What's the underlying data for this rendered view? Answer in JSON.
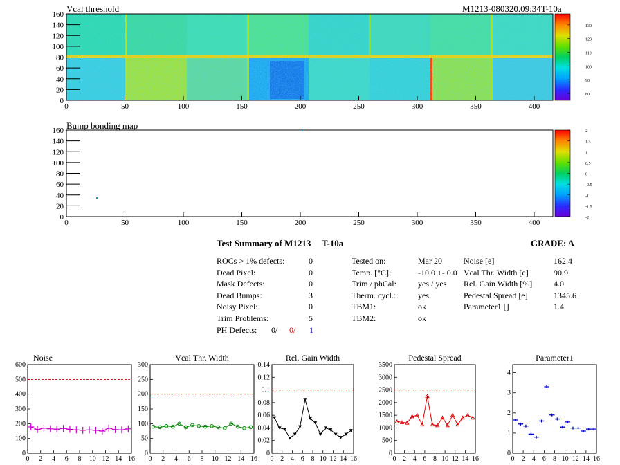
{
  "top": {
    "title": "Vcal threshold",
    "module_id": "M1213-080320.09:34T-10a",
    "x_ticks": [
      "0",
      "50",
      "100",
      "150",
      "200",
      "250",
      "300",
      "350",
      "400"
    ],
    "y_ticks": [
      "0",
      "20",
      "40",
      "60",
      "80",
      "100",
      "120",
      "140",
      "160"
    ],
    "palette_ticks": [
      "80",
      "90",
      "100",
      "110",
      "120",
      "130"
    ]
  },
  "bump": {
    "title": "Bump bonding map",
    "x_ticks": [
      "0",
      "50",
      "100",
      "150",
      "200",
      "250",
      "300",
      "350",
      "400"
    ],
    "y_ticks": [
      "0",
      "20",
      "40",
      "60",
      "80",
      "100",
      "120",
      "140",
      "160"
    ],
    "palette_ticks": [
      "-2",
      "-1.5",
      "-1",
      "-0.5",
      "0",
      "0.5",
      "1",
      "1.5",
      "2"
    ]
  },
  "summary": {
    "heading": "Test Summary of M1213",
    "temp_tag": "T-10a",
    "grade": "GRADE:  A",
    "left": [
      {
        "label": "ROCs > 1% defects:",
        "value": "0"
      },
      {
        "label": "Dead Pixel:",
        "value": "0"
      },
      {
        "label": "Mask Defects:",
        "value": "0"
      },
      {
        "label": "Dead Bumps:",
        "value": "3"
      },
      {
        "label": "Noisy Pixel:",
        "value": "0"
      },
      {
        "label": "Trim Problems:",
        "value": "5"
      }
    ],
    "ph_label": "PH Defects:",
    "ph_values": [
      "0/",
      "0/",
      "1"
    ],
    "middle": [
      {
        "label": "Tested on:",
        "value": "Mar 20"
      },
      {
        "label": "Temp. [°C]:",
        "value": "-10.0 +- 0.0"
      },
      {
        "label": "Trim / phCal:",
        "value": "yes / yes"
      },
      {
        "label": "Therm. cycl.:",
        "value": "yes"
      },
      {
        "label": "TBM1:",
        "value": "ok"
      },
      {
        "label": "TBM2:",
        "value": "ok"
      }
    ],
    "right": [
      {
        "label": "Noise [e]",
        "value": "162.4"
      },
      {
        "label": "Vcal Thr. Width [e]",
        "value": "90.9"
      },
      {
        "label": "Rel. Gain Width [%]",
        "value": "4.0"
      },
      {
        "label": "Pedestal Spread [e]",
        "value": "1345.6"
      },
      {
        "label": "Parameter1 []",
        "value": "1.4"
      }
    ]
  },
  "chart_data": [
    {
      "type": "line",
      "title": "Noise",
      "x": [
        0,
        1,
        2,
        3,
        4,
        5,
        6,
        7,
        8,
        9,
        10,
        11,
        12,
        13,
        14,
        15
      ],
      "values": [
        178,
        160,
        170,
        165,
        163,
        168,
        162,
        158,
        155,
        158,
        155,
        150,
        170,
        160,
        158,
        165
      ],
      "xlim": [
        0,
        16
      ],
      "ylim": [
        0,
        600
      ],
      "y_ticks": [
        0,
        100,
        200,
        300,
        400,
        500,
        600
      ],
      "x_ticks": [
        0,
        2,
        4,
        6,
        8,
        10,
        12,
        14,
        16
      ],
      "threshold": 500,
      "color": "#cc00cc",
      "marker": "plus"
    },
    {
      "type": "line",
      "title": "Vcal Thr. Width",
      "x": [
        0,
        1,
        2,
        3,
        4,
        5,
        6,
        7,
        8,
        9,
        10,
        11,
        12,
        13,
        14,
        15
      ],
      "values": [
        90,
        88,
        92,
        90,
        100,
        88,
        95,
        92,
        90,
        92,
        88,
        85,
        100,
        90,
        85,
        88
      ],
      "xlim": [
        0,
        16
      ],
      "ylim": [
        0,
        300
      ],
      "y_ticks": [
        0,
        50,
        100,
        150,
        200,
        250,
        300
      ],
      "x_ticks": [
        0,
        2,
        4,
        6,
        8,
        10,
        12,
        14,
        16
      ],
      "threshold": 200,
      "color": "#008800",
      "marker": "circle"
    },
    {
      "type": "line",
      "title": "Rel. Gain Width",
      "x": [
        0,
        1,
        2,
        3,
        4,
        5,
        6,
        7,
        8,
        9,
        10,
        11,
        12,
        13,
        14,
        15
      ],
      "values": [
        0.056,
        0.04,
        0.038,
        0.024,
        0.03,
        0.042,
        0.085,
        0.055,
        0.048,
        0.03,
        0.04,
        0.037,
        0.03,
        0.025,
        0.03,
        0.036
      ],
      "xlim": [
        0,
        16
      ],
      "ylim": [
        0,
        0.14
      ],
      "y_ticks": [
        0,
        0.02,
        0.04,
        0.06,
        0.08,
        0.1,
        0.12,
        0.14
      ],
      "y_tick_labels": [
        "0",
        "0.02",
        "0.04",
        "0.06",
        "0.08",
        "0.1",
        "0.12",
        "0.14"
      ],
      "x_ticks": [
        0,
        2,
        4,
        6,
        8,
        10,
        12,
        14,
        16
      ],
      "threshold": 0.1,
      "color": "#000000",
      "marker": "triangle-down"
    },
    {
      "type": "line",
      "title": "Pedestal Spread",
      "x": [
        0,
        1,
        2,
        3,
        4,
        5,
        6,
        7,
        8,
        9,
        10,
        11,
        12,
        13,
        14,
        15
      ],
      "values": [
        1250,
        1220,
        1200,
        1450,
        1500,
        1130,
        2250,
        1130,
        1100,
        1400,
        1100,
        1500,
        1130,
        1400,
        1500,
        1400
      ],
      "xlim": [
        0,
        16
      ],
      "ylim": [
        0,
        3500
      ],
      "y_ticks": [
        0,
        500,
        1000,
        1500,
        2000,
        2500,
        3000,
        3500
      ],
      "x_ticks": [
        0,
        2,
        4,
        6,
        8,
        10,
        12,
        14,
        16
      ],
      "threshold": 2500,
      "color": "#dd0000",
      "marker": "triangle-up"
    },
    {
      "type": "scatter",
      "title": "Parameter1",
      "x": [
        0,
        1,
        2,
        3,
        4,
        5,
        6,
        7,
        8,
        9,
        10,
        11,
        12,
        13,
        14,
        15
      ],
      "values": [
        1.65,
        1.45,
        1.35,
        0.95,
        0.8,
        1.6,
        3.3,
        1.9,
        1.7,
        1.3,
        1.55,
        1.25,
        1.25,
        1.1,
        1.2,
        1.2
      ],
      "xlim": [
        0,
        16
      ],
      "ylim": [
        0,
        4.4
      ],
      "y_ticks": [
        0,
        1,
        2,
        3,
        4
      ],
      "x_ticks": [
        0,
        2,
        4,
        6,
        8,
        10,
        12,
        14,
        16
      ],
      "color": "#0000cc",
      "marker": "cross"
    }
  ]
}
